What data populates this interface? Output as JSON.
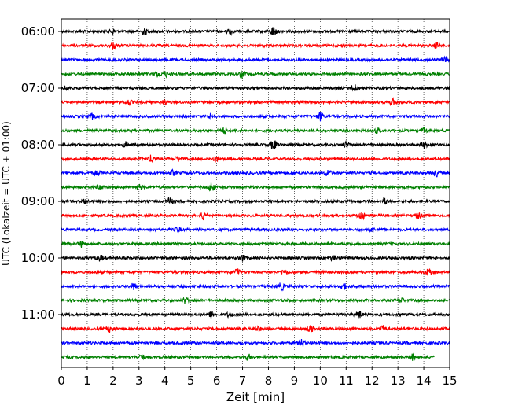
{
  "chart_data": {
    "type": "line",
    "title": "",
    "xlabel": "Zeit  [min]",
    "ylabel": "UTC (Lokalzeit = UTC + 01:00)",
    "xlim": [
      0,
      15
    ],
    "xticks": [
      0,
      1,
      2,
      3,
      4,
      5,
      6,
      7,
      8,
      9,
      10,
      11,
      12,
      13,
      14,
      15
    ],
    "xgrid": "vertical dotted at each minute",
    "yticks": [
      "06:00",
      "07:00",
      "08:00",
      "09:00",
      "10:00",
      "11:00"
    ],
    "legend": "none",
    "color_cycle": [
      "#000000",
      "#ff0000",
      "#0000ff",
      "#008000"
    ],
    "series": [
      {
        "start": "06:00",
        "color": "#000000",
        "events": [
          [
            8.2,
            1.0
          ],
          [
            3.2,
            0.6
          ],
          [
            2.0,
            0.5
          ],
          [
            6.5,
            0.6
          ]
        ],
        "end_min": 15
      },
      {
        "start": "06:15",
        "color": "#ff0000",
        "events": [
          [
            2.0,
            0.5
          ],
          [
            14.5,
            0.5
          ]
        ],
        "end_min": 15
      },
      {
        "start": "06:30",
        "color": "#0000ff",
        "events": [
          [
            14.8,
            0.7
          ]
        ],
        "end_min": 15
      },
      {
        "start": "06:45",
        "color": "#008000",
        "events": [
          [
            4.0,
            0.6
          ],
          [
            7.0,
            0.7
          ],
          [
            3.7,
            0.5
          ]
        ],
        "end_min": 15
      },
      {
        "start": "07:00",
        "color": "#000000",
        "events": [
          [
            11.3,
            0.8
          ],
          [
            0.2,
            0.5
          ]
        ],
        "end_min": 15
      },
      {
        "start": "07:15",
        "color": "#ff0000",
        "events": [
          [
            12.8,
            0.6
          ],
          [
            2.6,
            0.5
          ],
          [
            4.0,
            0.5
          ]
        ],
        "end_min": 15
      },
      {
        "start": "07:30",
        "color": "#0000ff",
        "events": [
          [
            10.0,
            0.8
          ],
          [
            1.2,
            0.5
          ],
          [
            5.8,
            0.5
          ]
        ],
        "end_min": 15
      },
      {
        "start": "07:45",
        "color": "#008000",
        "events": [
          [
            6.3,
            0.6
          ],
          [
            14.0,
            0.5
          ],
          [
            12.2,
            0.5
          ]
        ],
        "end_min": 15
      },
      {
        "start": "08:00",
        "color": "#000000",
        "events": [
          [
            8.2,
            1.0
          ],
          [
            11.0,
            0.6
          ],
          [
            14.0,
            0.7
          ],
          [
            2.5,
            0.5
          ]
        ],
        "end_min": 15
      },
      {
        "start": "08:15",
        "color": "#ff0000",
        "events": [
          [
            3.5,
            0.8
          ],
          [
            6.0,
            0.6
          ],
          [
            4.5,
            0.5
          ]
        ],
        "end_min": 15
      },
      {
        "start": "08:30",
        "color": "#0000ff",
        "events": [
          [
            1.4,
            0.6
          ],
          [
            10.3,
            0.7
          ],
          [
            14.5,
            0.6
          ],
          [
            4.3,
            0.5
          ]
        ],
        "end_min": 15
      },
      {
        "start": "08:45",
        "color": "#008000",
        "events": [
          [
            5.8,
            1.0
          ],
          [
            1.5,
            0.5
          ],
          [
            3.0,
            0.5
          ]
        ],
        "end_min": 15
      },
      {
        "start": "09:00",
        "color": "#000000",
        "events": [
          [
            4.2,
            0.7
          ],
          [
            0.9,
            0.5
          ],
          [
            12.5,
            0.5
          ]
        ],
        "end_min": 15
      },
      {
        "start": "09:15",
        "color": "#ff0000",
        "events": [
          [
            5.5,
            0.8
          ],
          [
            11.6,
            0.8
          ],
          [
            13.8,
            0.6
          ]
        ],
        "end_min": 15
      },
      {
        "start": "09:30",
        "color": "#0000ff",
        "events": [
          [
            4.5,
            0.5
          ],
          [
            12.0,
            0.5
          ]
        ],
        "end_min": 15
      },
      {
        "start": "09:45",
        "color": "#008000",
        "events": [
          [
            0.8,
            0.6
          ]
        ],
        "end_min": 15
      },
      {
        "start": "10:00",
        "color": "#000000",
        "events": [
          [
            1.5,
            0.6
          ],
          [
            7.0,
            0.6
          ],
          [
            10.5,
            0.5
          ]
        ],
        "end_min": 15
      },
      {
        "start": "10:15",
        "color": "#ff0000",
        "events": [
          [
            6.8,
            0.8
          ],
          [
            14.2,
            0.8
          ],
          [
            8.6,
            0.5
          ]
        ],
        "end_min": 15
      },
      {
        "start": "10:30",
        "color": "#0000ff",
        "events": [
          [
            2.8,
            0.7
          ],
          [
            8.5,
            0.7
          ],
          [
            10.9,
            0.6
          ]
        ],
        "end_min": 15
      },
      {
        "start": "10:45",
        "color": "#008000",
        "events": [
          [
            4.8,
            0.6
          ],
          [
            13.1,
            0.5
          ]
        ],
        "end_min": 15
      },
      {
        "start": "11:00",
        "color": "#000000",
        "events": [
          [
            5.8,
            0.7
          ],
          [
            11.5,
            0.7
          ],
          [
            6.5,
            0.5
          ]
        ],
        "end_min": 15
      },
      {
        "start": "11:15",
        "color": "#ff0000",
        "events": [
          [
            9.6,
            0.8
          ],
          [
            12.4,
            0.6
          ],
          [
            1.9,
            0.6
          ],
          [
            7.6,
            0.5
          ]
        ],
        "end_min": 15
      },
      {
        "start": "11:30",
        "color": "#0000ff",
        "events": [
          [
            9.3,
            0.7
          ]
        ],
        "end_min": 15
      },
      {
        "start": "11:45",
        "color": "#008000",
        "events": [
          [
            3.1,
            0.6
          ],
          [
            7.2,
            0.6
          ],
          [
            13.6,
            0.6
          ]
        ],
        "end_min": 14.4
      }
    ]
  }
}
